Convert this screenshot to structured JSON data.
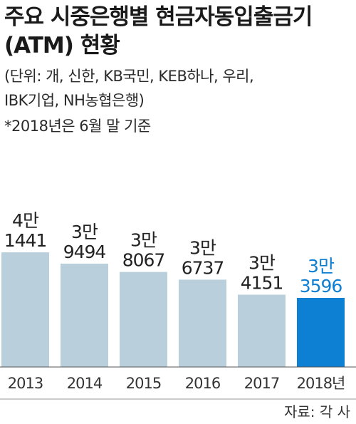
{
  "title_line1": "주요 시중은행별 현금자동입출금기",
  "title_line2": "(ATM) 현황",
  "note_line1": "(단위: 개, 신한, KB국민, KEB하나, 우리,",
  "note_line2": "IBK기업, NH농협은행)",
  "basis": "*2018년은 6월 말 기준",
  "source": "자료: 각 사",
  "colors": {
    "bar": "#b9d0dc",
    "highlight_bar": "#0d80d3",
    "text": "#222222",
    "highlight_text": "#0d80d3"
  },
  "chart_data": {
    "type": "bar",
    "categories": [
      "2013",
      "2014",
      "2015",
      "2016",
      "2017",
      "2018년"
    ],
    "values": [
      41441,
      39494,
      38067,
      36737,
      34151,
      33596
    ],
    "label_top": [
      "4만",
      "3만",
      "3만",
      "3만",
      "3만",
      "3만"
    ],
    "label_bottom": [
      "1441",
      "9494",
      "8067",
      "6737",
      "4151",
      "3596"
    ],
    "highlight_index": 5,
    "grid": false
  }
}
